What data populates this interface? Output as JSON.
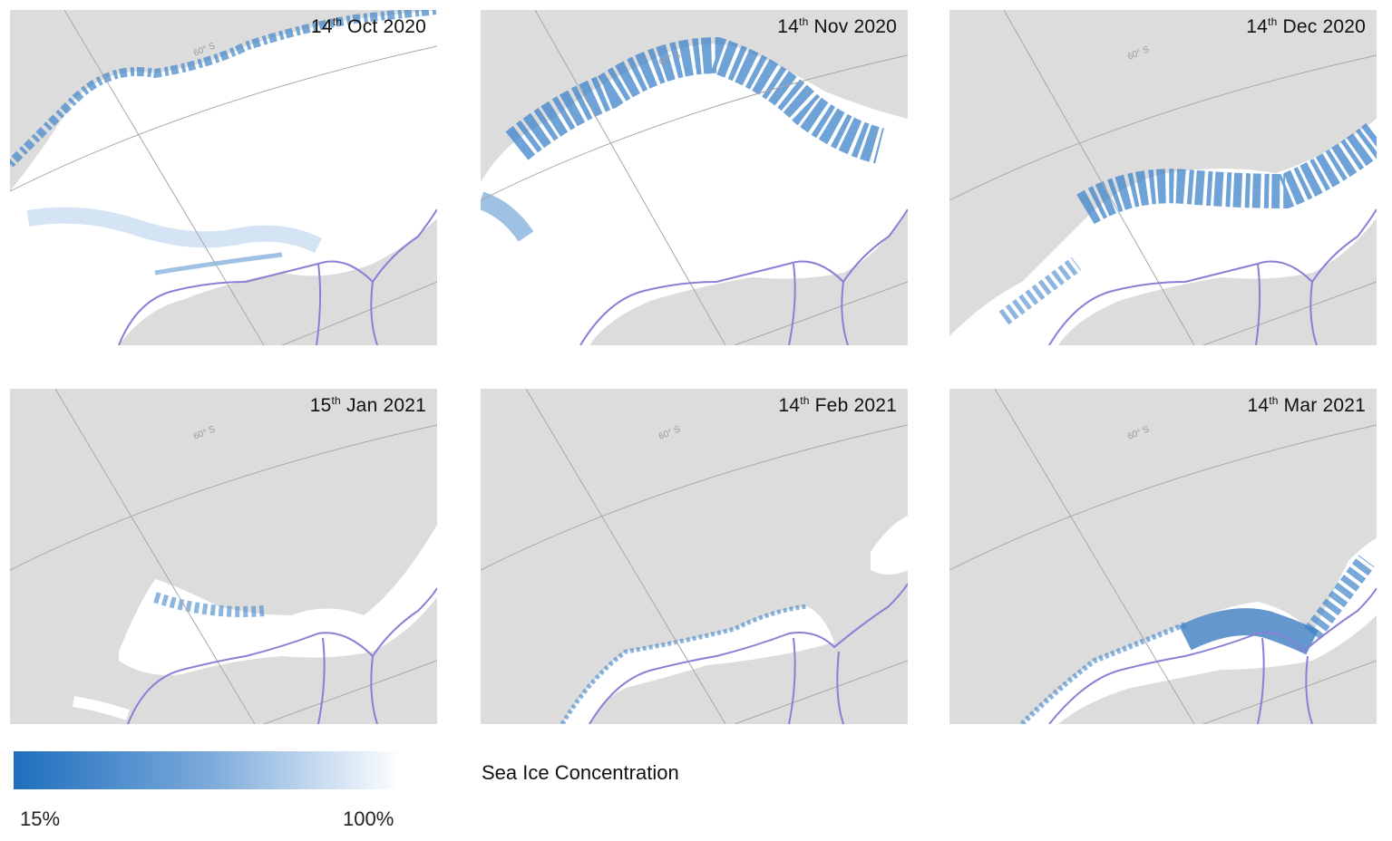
{
  "panels": [
    {
      "day": "14",
      "suffix": "th",
      "rest": "Oct 2020"
    },
    {
      "day": "14",
      "suffix": "th",
      "rest": "Nov 2020"
    },
    {
      "day": "14",
      "suffix": "th",
      "rest": "Dec 2020"
    },
    {
      "day": "15",
      "suffix": "th",
      "rest": "Jan 2021"
    },
    {
      "day": "14",
      "suffix": "th",
      "rest": "Feb 2021"
    },
    {
      "day": "14",
      "suffix": "th",
      "rest": "Mar 2021"
    }
  ],
  "graticule_label": "60° S",
  "legend": {
    "title": "Sea Ice Concentration",
    "min_label": "15%",
    "max_label": "100%"
  },
  "colors": {
    "land_background": "#dcdcdc",
    "ice_high": "#ffffff",
    "ice_low": "#1f6fbf",
    "coastline": "#8a7fd6",
    "graticule": "#a8a8a8"
  }
}
